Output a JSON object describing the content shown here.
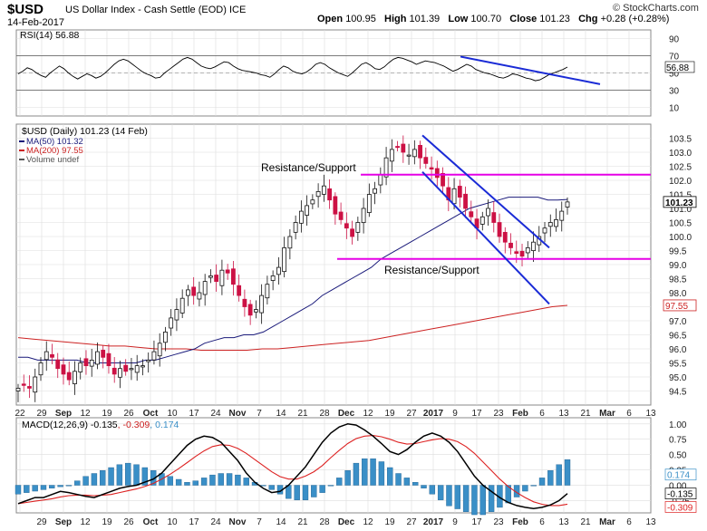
{
  "header": {
    "symbol": "$USD",
    "name": "US Dollar Index - Cash Settle (EOD)",
    "exchange": "ICE",
    "date": "14-Feb-2017",
    "open_label": "Open",
    "open": "100.95",
    "high_label": "High",
    "high": "101.39",
    "low_label": "Low",
    "low": "100.70",
    "close_label": "Close",
    "close": "101.23",
    "chg_label": "Chg",
    "chg": "+0.28 (+0.28%)",
    "copyright": "© StockCharts.com"
  },
  "chart_data": [
    {
      "type": "line",
      "panel": "rsi",
      "title": "RSI(14) 56.88",
      "ylim": [
        0,
        100
      ],
      "ticks": [
        90,
        70,
        50,
        30,
        10
      ],
      "levels": [
        70,
        30
      ],
      "current_value": "56.88",
      "values": [
        49,
        52,
        56,
        54,
        50,
        47,
        45,
        50,
        54,
        58,
        55,
        50,
        46,
        43,
        46,
        49,
        47,
        44,
        46,
        50,
        55,
        60,
        64,
        66,
        64,
        60,
        56,
        52,
        49,
        47,
        44,
        45,
        50,
        54,
        58,
        62,
        66,
        68,
        66,
        62,
        58,
        56,
        55,
        57,
        60,
        63,
        62,
        58,
        55,
        53,
        52,
        51,
        50,
        48,
        47,
        45,
        49,
        54,
        58,
        56,
        52,
        50,
        49,
        51,
        55,
        60,
        62,
        60,
        56,
        53,
        50,
        48,
        46,
        50,
        55,
        60,
        62,
        59,
        55,
        54,
        57,
        62,
        66,
        68,
        67,
        65,
        63,
        60,
        62,
        64,
        63,
        62,
        60,
        58,
        55,
        52,
        54,
        57,
        60,
        58,
        54,
        52,
        50,
        49,
        47,
        45,
        44,
        46,
        49,
        48,
        46,
        44,
        43,
        41,
        42,
        45,
        48,
        50,
        52,
        54,
        56.88
      ],
      "trendline": {
        "from": [
          0.7,
          69
        ],
        "to": [
          0.92,
          37
        ]
      }
    },
    {
      "type": "candlestick",
      "panel": "price",
      "title": "$USD (Daily) 101.23 (14 Feb)",
      "legend": [
        "MA(50) 101.32",
        "MA(200) 97.55",
        "Volume undef"
      ],
      "ylim": [
        94.0,
        104.0
      ],
      "y_ticks": [
        103.5,
        103.0,
        102.5,
        102.0,
        101.5,
        101.0,
        100.5,
        100.0,
        99.5,
        99.0,
        98.5,
        98.0,
        97.5,
        97.0,
        96.5,
        96.0,
        95.5,
        95.0,
        94.5
      ],
      "x_tick_labels": [
        "22",
        "29",
        "Sep",
        "12",
        "19",
        "26",
        "Oct",
        "10",
        "17",
        "24",
        "Nov",
        "7",
        "14",
        "21",
        "28",
        "Dec",
        "12",
        "19",
        "27",
        "2017",
        "9",
        "17",
        "23",
        "Feb",
        "6",
        "13",
        "21",
        "Mar",
        "6",
        "13"
      ],
      "closes": [
        94.6,
        94.7,
        94.6,
        95.0,
        95.5,
        95.9,
        95.7,
        95.3,
        95.1,
        94.9,
        95.2,
        95.5,
        95.4,
        95.6,
        95.9,
        95.7,
        95.4,
        95.1,
        95.3,
        95.2,
        95.3,
        95.4,
        95.4,
        95.6,
        95.9,
        96.2,
        96.6,
        97.1,
        97.4,
        97.8,
        98.1,
        97.9,
        98.0,
        98.4,
        98.6,
        98.4,
        98.8,
        98.7,
        98.3,
        97.9,
        97.5,
        97.2,
        97.4,
        97.9,
        98.3,
        98.6,
        98.9,
        99.6,
        100.0,
        100.5,
        100.9,
        101.1,
        101.3,
        101.6,
        101.8,
        101.3,
        100.8,
        100.6,
        100.3,
        100.0,
        100.5,
        101.0,
        101.5,
        101.7,
        102.2,
        102.8,
        103.1,
        103.2,
        103.0,
        102.9,
        103.1,
        102.8,
        102.6,
        102.4,
        102.1,
        101.8,
        101.3,
        101.7,
        101.4,
        101.0,
        100.7,
        100.3,
        100.7,
        101.0,
        100.5,
        100.0,
        99.8,
        99.6,
        99.4,
        99.3,
        99.6,
        99.8,
        100.0,
        100.3,
        100.5,
        100.6,
        100.9,
        101.23
      ],
      "ma50": [
        95.7,
        95.7,
        95.6,
        95.6,
        95.6,
        95.6,
        95.6,
        95.5,
        95.5,
        95.5,
        95.5,
        95.5,
        95.5,
        95.6,
        95.6,
        95.7,
        95.8,
        95.9,
        96.0,
        96.2,
        96.3,
        96.4,
        96.4,
        96.5,
        96.5,
        96.6,
        96.8,
        97.0,
        97.2,
        97.4,
        97.6,
        97.9,
        98.1,
        98.3,
        98.5,
        98.7,
        98.9,
        99.2,
        99.4,
        99.6,
        99.8,
        100.0,
        100.2,
        100.4,
        100.6,
        100.8,
        101.0,
        101.1,
        101.2,
        101.3,
        101.4,
        101.4,
        101.4,
        101.4,
        101.3,
        101.3,
        101.32
      ],
      "ma200": [
        96.4,
        96.35,
        96.3,
        96.25,
        96.2,
        96.15,
        96.1,
        96.1,
        96.05,
        96.0,
        96.0,
        96.0,
        95.95,
        95.95,
        95.95,
        95.95,
        96.0,
        96.0,
        96.05,
        96.1,
        96.15,
        96.2,
        96.25,
        96.3,
        96.4,
        96.5,
        96.6,
        96.7,
        96.8,
        96.9,
        97.0,
        97.1,
        97.2,
        97.3,
        97.4,
        97.5,
        97.55
      ],
      "current_labels": [
        "101.23",
        "97.55"
      ],
      "annotations": [
        {
          "text": "Resistance/Support",
          "y": 102.2
        },
        {
          "text": "Resistance/Support",
          "y": 99.2
        }
      ],
      "channel": {
        "upper": {
          "from": [
            0.64,
            103.6
          ],
          "to": [
            0.84,
            99.6
          ]
        },
        "lower": {
          "from": [
            0.64,
            102.3
          ],
          "to": [
            0.84,
            97.6
          ]
        }
      },
      "horizontal_lines": [
        102.2,
        99.2
      ]
    },
    {
      "type": "bar",
      "panel": "macd",
      "title": "MACD(12,26,9) -0.135, -0.309, 0.174",
      "legend": [
        "MACD(12,26,9)",
        "-0.135",
        "-0.309",
        "0.174"
      ],
      "ylim": [
        -0.45,
        1.1
      ],
      "y_ticks": [
        1.0,
        0.75,
        0.5,
        0.25,
        0.0,
        -0.25
      ],
      "current_labels": [
        "0.174",
        "-0.135",
        "-0.309"
      ],
      "macd": [
        -0.3,
        -0.25,
        -0.2,
        -0.2,
        -0.15,
        -0.1,
        -0.12,
        -0.15,
        -0.18,
        -0.2,
        -0.15,
        -0.1,
        -0.05,
        -0.02,
        0.0,
        0.05,
        0.1,
        0.2,
        0.35,
        0.5,
        0.65,
        0.75,
        0.8,
        0.78,
        0.7,
        0.55,
        0.4,
        0.2,
        0.05,
        -0.05,
        -0.12,
        -0.1,
        0.0,
        0.15,
        0.3,
        0.5,
        0.7,
        0.85,
        0.95,
        1.0,
        0.98,
        0.9,
        0.8,
        0.68,
        0.55,
        0.5,
        0.58,
        0.7,
        0.8,
        0.85,
        0.8,
        0.7,
        0.55,
        0.35,
        0.15,
        0.0,
        -0.1,
        -0.2,
        -0.28,
        -0.33,
        -0.36,
        -0.38,
        -0.36,
        -0.32,
        -0.25,
        -0.135
      ],
      "signal": [
        -0.3,
        -0.28,
        -0.26,
        -0.24,
        -0.22,
        -0.19,
        -0.17,
        -0.16,
        -0.16,
        -0.17,
        -0.16,
        -0.15,
        -0.12,
        -0.09,
        -0.06,
        -0.02,
        0.03,
        0.1,
        0.18,
        0.27,
        0.37,
        0.47,
        0.56,
        0.63,
        0.66,
        0.65,
        0.6,
        0.52,
        0.42,
        0.32,
        0.22,
        0.14,
        0.1,
        0.1,
        0.15,
        0.22,
        0.32,
        0.45,
        0.57,
        0.68,
        0.76,
        0.8,
        0.81,
        0.79,
        0.75,
        0.7,
        0.67,
        0.68,
        0.71,
        0.74,
        0.76,
        0.75,
        0.71,
        0.63,
        0.52,
        0.38,
        0.24,
        0.1,
        -0.02,
        -0.12,
        -0.2,
        -0.27,
        -0.31,
        -0.33,
        -0.33,
        -0.309
      ],
      "histogram": [
        -0.06,
        -0.05,
        -0.04,
        -0.03,
        -0.02,
        -0.01,
        0.0,
        0.03,
        0.06,
        0.08,
        0.1,
        0.12,
        0.14,
        0.15,
        0.14,
        0.12,
        0.1,
        0.08,
        0.06,
        0.04,
        0.02,
        0.03,
        0.05,
        0.07,
        0.08,
        0.08,
        0.07,
        0.05,
        0.02,
        0.0,
        -0.03,
        -0.06,
        -0.09,
        -0.1,
        -0.1,
        -0.08,
        -0.05,
        0.0,
        0.05,
        0.1,
        0.15,
        0.18,
        0.18,
        0.16,
        0.12,
        0.08,
        0.05,
        0.02,
        -0.02,
        -0.06,
        -0.1,
        -0.14,
        -0.16,
        -0.18,
        -0.2,
        -0.2,
        -0.18,
        -0.15,
        -0.12,
        -0.08,
        -0.04,
        0.0,
        0.05,
        0.1,
        0.14,
        0.174
      ],
      "x_tick_labels": [
        "29",
        "Sep",
        "12",
        "19",
        "26",
        "Oct",
        "10",
        "17",
        "24",
        "Nov",
        "7",
        "14",
        "21",
        "28",
        "Dec",
        "12",
        "19",
        "27",
        "2017",
        "9",
        "17",
        "23",
        "Feb",
        "6",
        "13",
        "21",
        "Mar",
        "6",
        "13"
      ]
    }
  ],
  "colors": {
    "rsi_fill": "#4a8a3a",
    "rsi_line": "#000000",
    "trendline": "#1a2bd6",
    "resistance": "#e600e6",
    "ma50": "#1a1a7a",
    "ma200": "#cc2222",
    "candle_up": "#111111",
    "candle_down": "#cc1144",
    "macd_line": "#000000",
    "signal_line": "#dd2222",
    "histogram": "#3a8fc7",
    "grid": "#dddddd",
    "panel_border": "#888888"
  }
}
